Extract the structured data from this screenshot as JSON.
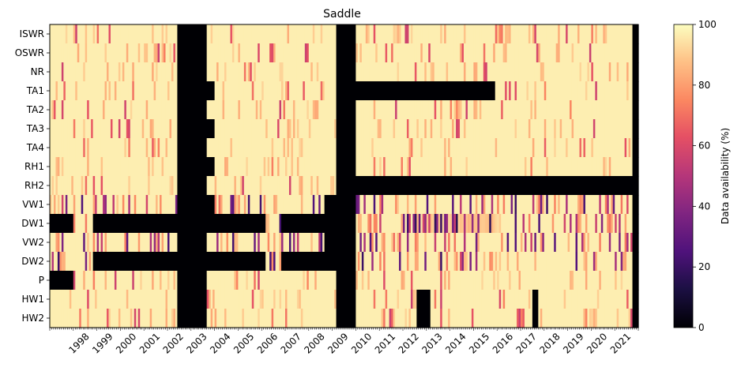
{
  "chart_data": {
    "type": "heatmap",
    "title": "Saddle",
    "rows": [
      "ISWR",
      "OSWR",
      "NR",
      "TA1",
      "TA2",
      "TA3",
      "TA4",
      "RH1",
      "RH2",
      "VW1",
      "DW1",
      "VW2",
      "DW2",
      "P",
      "HW1",
      "HW2"
    ],
    "x_tick_labels": [
      "1998",
      "1999",
      "2000",
      "2001",
      "2002",
      "2003",
      "2004",
      "2005",
      "2006",
      "2007",
      "2008",
      "2009",
      "2010",
      "2011",
      "2012",
      "2013",
      "2014",
      "2015",
      "2016",
      "2017",
      "2018",
      "2019",
      "2020",
      "2021"
    ],
    "x_range": [
      "1997-01",
      "2021-12"
    ],
    "colorbar": {
      "label": "Data availability (%)",
      "min": 0,
      "max": 100,
      "ticks": [
        0,
        20,
        40,
        60,
        80,
        100
      ],
      "colormap": "magma"
    },
    "missing_blocks": [
      {
        "rows": "all",
        "from": "2002-06",
        "to": "2003-08",
        "availability": 0
      },
      {
        "rows": "all",
        "from": "2009-03",
        "to": "2009-12",
        "availability": 0
      },
      {
        "rows": "all",
        "from": "2021-10",
        "to": "2021-12",
        "availability": 0
      },
      {
        "rows": [
          "TA1"
        ],
        "from": "2010-01",
        "to": "2015-11",
        "availability": 0
      },
      {
        "rows": [
          "RH2"
        ],
        "from": "2010-01",
        "to": "2021-09",
        "availability": 0
      },
      {
        "rows": [
          "TA1",
          "TA3",
          "RH1"
        ],
        "from": "2003-09",
        "to": "2003-12",
        "availability": 0
      },
      {
        "rows": [
          "VW1"
        ],
        "from": "2003-09",
        "to": "2003-12",
        "availability": 0
      },
      {
        "rows": [
          "DW1",
          "DW2"
        ],
        "from": "1998-11",
        "to": "2006-02",
        "availability": 0
      },
      {
        "rows": [
          "DW1",
          "DW2"
        ],
        "from": "2006-11",
        "to": "2009-12",
        "availability": 0
      },
      {
        "rows": [
          "DW1"
        ],
        "from": "1997-01",
        "to": "1997-12",
        "availability": 0
      },
      {
        "rows": [
          "P"
        ],
        "from": "1997-01",
        "to": "1997-12",
        "availability": 0
      },
      {
        "rows": [
          "VW1",
          "VW2"
        ],
        "from": "2008-09",
        "to": "2009-12",
        "availability": 0
      },
      {
        "rows": [
          "HW1",
          "HW2"
        ],
        "from": "2012-08",
        "to": "2013-02",
        "availability": 0
      },
      {
        "rows": [
          "HW1",
          "HW2"
        ],
        "from": "2017-07",
        "to": "2017-09",
        "availability": 0
      },
      {
        "rows": [
          "DW1"
        ],
        "from": "2012-06",
        "to": "2016-02",
        "availability": 15
      }
    ],
    "typical_availability": 97,
    "notes_visible": "Most months near 100%; intermittent lower-availability months appear as orange and purple stripes."
  }
}
